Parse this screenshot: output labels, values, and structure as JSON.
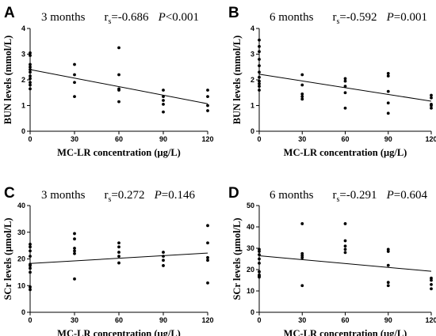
{
  "chart_data": [
    {
      "type": "scatter",
      "panel": "A",
      "title": "3 months",
      "stat_r": "r",
      "stat_r_sub": "s",
      "stat_r_value": "=-0.686",
      "stat_p": "P",
      "stat_p_value": "<0.001",
      "xlabel": "MC-LR concentration (μg/L)",
      "ylabel": "BUN levels (mmol/L)",
      "xlim": [
        0,
        120
      ],
      "ylim": [
        0,
        4
      ],
      "xticks": [
        0,
        30,
        60,
        90,
        120
      ],
      "yticks": [
        0,
        1,
        2,
        3,
        4
      ],
      "grid": false,
      "points": [
        [
          0,
          3.05
        ],
        [
          0,
          2.95
        ],
        [
          0,
          2.6
        ],
        [
          0,
          2.5
        ],
        [
          0,
          2.4
        ],
        [
          0,
          2.3
        ],
        [
          0,
          2.15
        ],
        [
          0,
          2.05
        ],
        [
          0,
          1.9
        ],
        [
          0,
          1.8
        ],
        [
          0,
          1.65
        ],
        [
          30,
          2.6
        ],
        [
          30,
          2.2
        ],
        [
          30,
          1.9
        ],
        [
          30,
          1.35
        ],
        [
          60,
          3.25
        ],
        [
          60,
          2.2
        ],
        [
          60,
          1.65
        ],
        [
          60,
          1.6
        ],
        [
          60,
          1.15
        ],
        [
          90,
          1.6
        ],
        [
          90,
          1.35
        ],
        [
          90,
          1.2
        ],
        [
          90,
          1.05
        ],
        [
          90,
          0.75
        ],
        [
          120,
          1.6
        ],
        [
          120,
          1.35
        ],
        [
          120,
          1.0
        ],
        [
          120,
          0.8
        ]
      ],
      "trendline": [
        [
          0,
          2.4
        ],
        [
          120,
          1.07
        ]
      ]
    },
    {
      "type": "scatter",
      "panel": "B",
      "title": "6 months",
      "stat_r": "r",
      "stat_r_sub": "s",
      "stat_r_value": "=-0.592",
      "stat_p": "P",
      "stat_p_value": "=0.001",
      "xlabel": "MC-LR concentration (μg/L)",
      "ylabel": "BUN levels (mmol/L)",
      "xlim": [
        0,
        120
      ],
      "ylim": [
        0,
        4
      ],
      "xticks": [
        0,
        30,
        60,
        90,
        120
      ],
      "yticks": [
        0,
        1,
        2,
        3,
        4
      ],
      "grid": false,
      "points": [
        [
          0,
          3.55
        ],
        [
          0,
          3.3
        ],
        [
          0,
          3.1
        ],
        [
          0,
          2.8
        ],
        [
          0,
          2.55
        ],
        [
          0,
          2.3
        ],
        [
          0,
          2.1
        ],
        [
          0,
          1.95
        ],
        [
          0,
          1.85
        ],
        [
          0,
          1.75
        ],
        [
          0,
          1.6
        ],
        [
          30,
          2.2
        ],
        [
          30,
          1.8
        ],
        [
          30,
          1.45
        ],
        [
          30,
          1.35
        ],
        [
          30,
          1.25
        ],
        [
          60,
          2.05
        ],
        [
          60,
          1.95
        ],
        [
          60,
          1.75
        ],
        [
          60,
          1.5
        ],
        [
          60,
          0.9
        ],
        [
          90,
          2.25
        ],
        [
          90,
          2.15
        ],
        [
          90,
          1.55
        ],
        [
          90,
          1.1
        ],
        [
          90,
          0.7
        ],
        [
          120,
          1.4
        ],
        [
          120,
          1.3
        ],
        [
          120,
          1.05
        ],
        [
          120,
          1.0
        ],
        [
          120,
          0.9
        ]
      ],
      "trendline": [
        [
          0,
          2.22
        ],
        [
          120,
          1.17
        ]
      ]
    },
    {
      "type": "scatter",
      "panel": "C",
      "title": "3 months",
      "stat_r": "r",
      "stat_r_sub": "s",
      "stat_r_value": "=0.272",
      "stat_p": "P",
      "stat_p_value": "=0.146",
      "xlabel": "MC-LR concentration (μg/L)",
      "ylabel": "SCr levels (μmol/L)",
      "xlim": [
        0,
        120
      ],
      "ylim": [
        0,
        40
      ],
      "xticks": [
        0,
        30,
        60,
        90,
        120
      ],
      "yticks": [
        0,
        10,
        20,
        30,
        40
      ],
      "grid": false,
      "points": [
        [
          0,
          25.5
        ],
        [
          0,
          24.5
        ],
        [
          0,
          23
        ],
        [
          0,
          21
        ],
        [
          0,
          18
        ],
        [
          0,
          17.5
        ],
        [
          0,
          16.5
        ],
        [
          0,
          15
        ],
        [
          0,
          9.5
        ],
        [
          0,
          8.5
        ],
        [
          30,
          29.5
        ],
        [
          30,
          27.5
        ],
        [
          30,
          24
        ],
        [
          30,
          23
        ],
        [
          30,
          22
        ],
        [
          30,
          12.5
        ],
        [
          60,
          26
        ],
        [
          60,
          24.5
        ],
        [
          60,
          22.5
        ],
        [
          60,
          21
        ],
        [
          60,
          18.5
        ],
        [
          90,
          22.5
        ],
        [
          90,
          21
        ],
        [
          90,
          19.5
        ],
        [
          90,
          17.5
        ],
        [
          120,
          32.5
        ],
        [
          120,
          26
        ],
        [
          120,
          20.5
        ],
        [
          120,
          19.5
        ],
        [
          120,
          11
        ]
      ],
      "trendline": [
        [
          0,
          18.3
        ],
        [
          120,
          22.2
        ]
      ]
    },
    {
      "type": "scatter",
      "panel": "D",
      "title": "6 months",
      "stat_r": "r",
      "stat_r_sub": "s",
      "stat_r_value": "=-0.291",
      "stat_p": "P",
      "stat_p_value": "=0.604",
      "xlabel": "MC-LR concentration (μg/L)",
      "ylabel": "SCr levels (μmol/L)",
      "xlim": [
        0,
        120
      ],
      "ylim": [
        0,
        50
      ],
      "xticks": [
        0,
        30,
        60,
        90,
        120
      ],
      "yticks": [
        0,
        10,
        20,
        30,
        40,
        50
      ],
      "grid": false,
      "points": [
        [
          0,
          29.5
        ],
        [
          0,
          28.5
        ],
        [
          0,
          27
        ],
        [
          0,
          25
        ],
        [
          0,
          23
        ],
        [
          0,
          19
        ],
        [
          0,
          17.5
        ],
        [
          0,
          17
        ],
        [
          0,
          16.5
        ],
        [
          30,
          41.5
        ],
        [
          30,
          27.5
        ],
        [
          30,
          26.5
        ],
        [
          30,
          25.5
        ],
        [
          30,
          12.5
        ],
        [
          60,
          41.5
        ],
        [
          60,
          33.5
        ],
        [
          60,
          31
        ],
        [
          60,
          29.5
        ],
        [
          60,
          28
        ],
        [
          90,
          29.5
        ],
        [
          90,
          28.5
        ],
        [
          90,
          22
        ],
        [
          90,
          14
        ],
        [
          90,
          12.5
        ],
        [
          120,
          16
        ],
        [
          120,
          15
        ],
        [
          120,
          13
        ],
        [
          120,
          11
        ]
      ],
      "trendline": [
        [
          0,
          26.5
        ],
        [
          120,
          19.2
        ]
      ]
    }
  ]
}
